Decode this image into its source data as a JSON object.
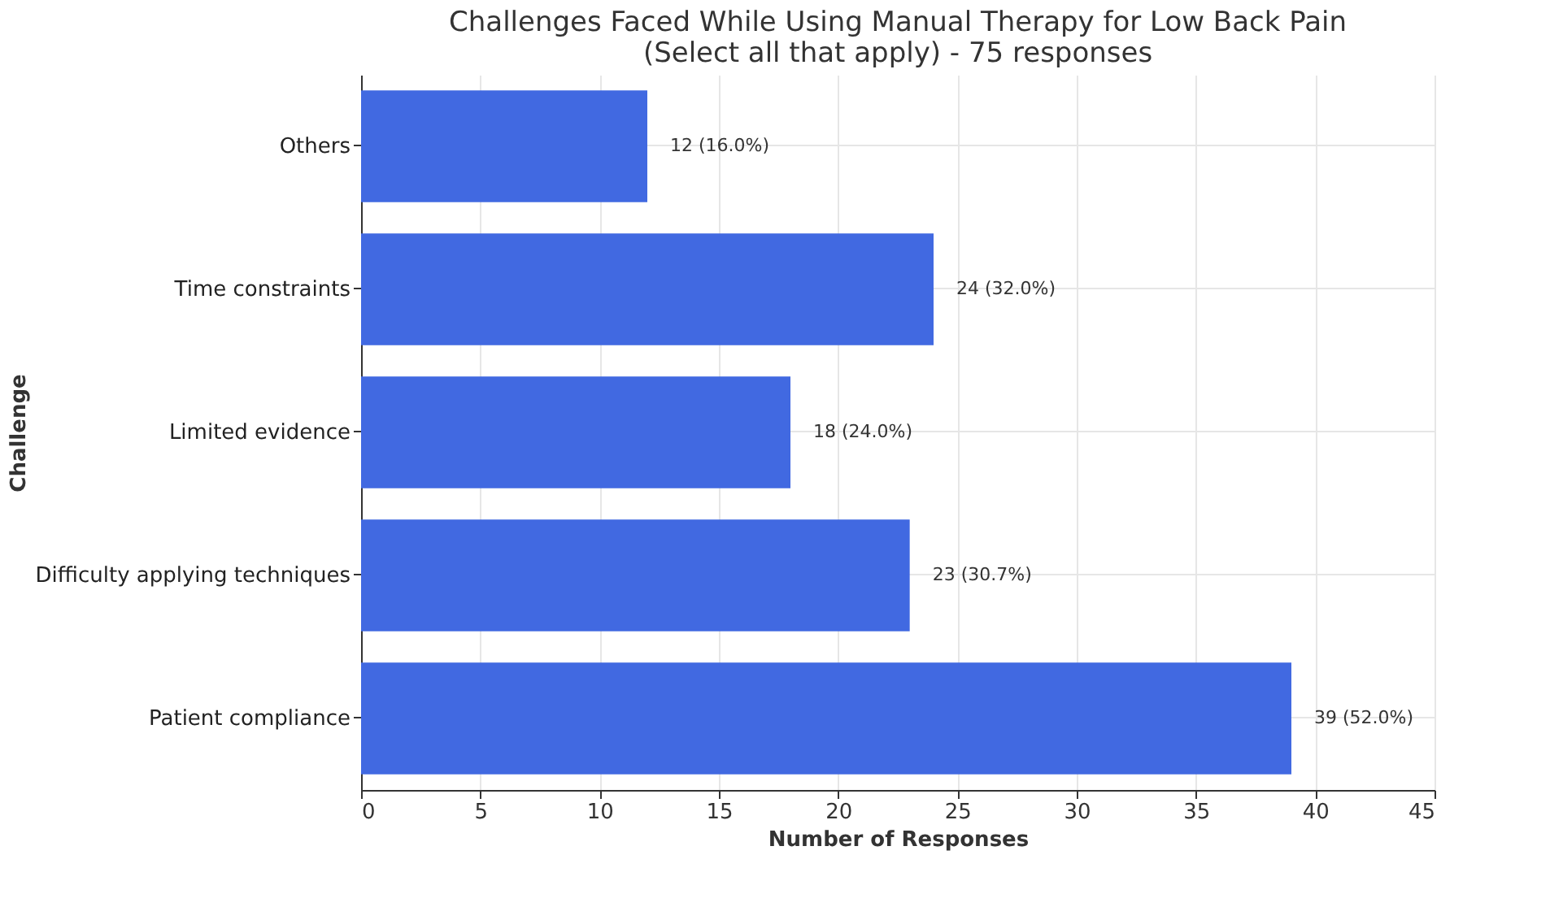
{
  "chart_data": {
    "type": "bar",
    "orientation": "horizontal",
    "title": [
      "Challenges Faced While Using Manual Therapy for Low Back Pain",
      "(Select all that apply) - 75 responses"
    ],
    "xlabel": "Number of Responses",
    "ylabel": "Challenge",
    "categories": [
      "Others",
      "Time constraints",
      "Limited evidence",
      "Difficulty applying techniques",
      "Patient compliance"
    ],
    "values": [
      12,
      24,
      18,
      23,
      39
    ],
    "value_labels": [
      "12 (16.0%)",
      "24 (32.0%)",
      "18 (24.0%)",
      "23 (30.7%)",
      "39 (52.0%)"
    ],
    "color": "#4169e1",
    "xlim": [
      0,
      45
    ],
    "xticks": [
      0,
      5,
      10,
      15,
      20,
      25,
      30,
      35,
      40,
      45
    ],
    "grid": true
  }
}
